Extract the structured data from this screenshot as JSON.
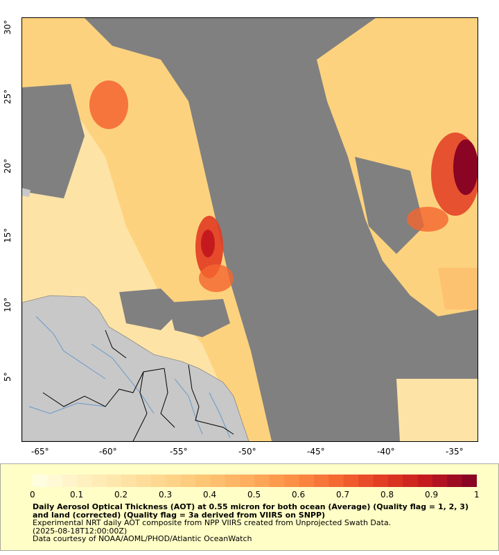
{
  "map": {
    "y_axis_labels": [
      "30°",
      "25°",
      "20°",
      "15°",
      "10°",
      "5°"
    ],
    "x_axis_labels": [
      "-65°",
      "-60°",
      "-55°",
      "-50°",
      "-45°",
      "-40°",
      "-35°"
    ],
    "lon_range": [
      -66,
      -33.5
    ],
    "lat_range": [
      0,
      30.5
    ],
    "colors": {
      "no_data": "#808080",
      "land": "#c8c8c8",
      "rivers": "#6699cc",
      "borders": "#000000"
    }
  },
  "legend": {
    "ticks": [
      "0",
      "0.1",
      "0.2",
      "0.3",
      "0.4",
      "0.5",
      "0.6",
      "0.7",
      "0.8",
      "0.9",
      "1"
    ],
    "title": "Daily Aerosol Optical Thickness (AOT) at 0.55 micron for both ocean (Average) (Quality flag = 1, 2, 3) and land (corrected) (Quality flag = 3a derived from VIIRS on SNPP)",
    "line1": "Experimental NRT daily AOT composite from NPP VIIRS created from Unprojected Swath Data.",
    "line2": "(2025-08-18T12:00:00Z)",
    "line3": "Data courtesy of NOAA/AOML/PHOD/Atlantic OceanWatch",
    "colormap": [
      "#fffde0",
      "#fff0c0",
      "#fee3a6",
      "#fed48a",
      "#fdc270",
      "#fdaa5a",
      "#fb8c43",
      "#f46530",
      "#e23b22",
      "#c41a1f",
      "#8a0424"
    ]
  }
}
